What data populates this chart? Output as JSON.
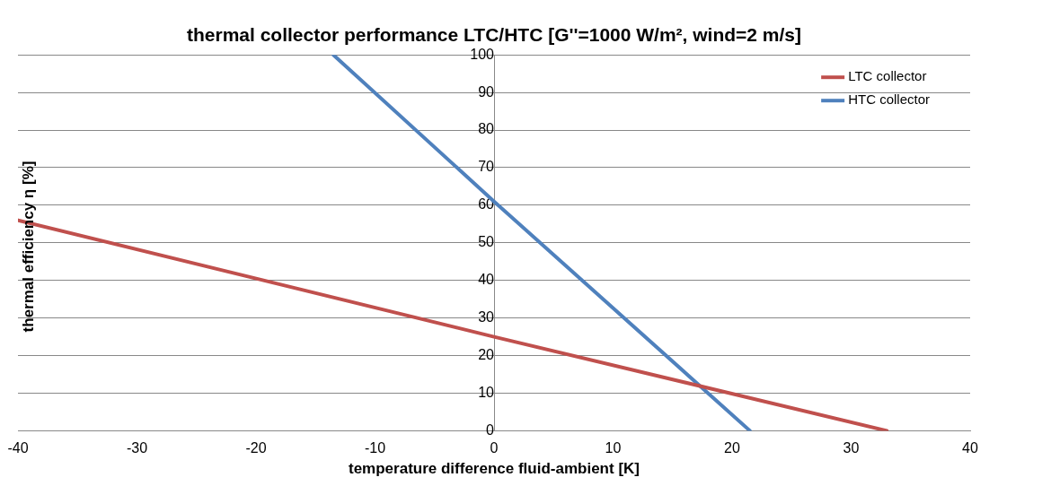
{
  "chart_data": {
    "type": "line",
    "title": "thermal collector performance LTC/HTC [G''=1000 W/m², wind=2 m/s]",
    "xlabel": "temperature difference fluid-ambient [K]",
    "ylabel": "thermal efficiency η [%]",
    "series": [
      {
        "name": "LTC collector",
        "color": "#c0504d",
        "x": [
          -40,
          0,
          33
        ],
        "values": [
          56,
          25,
          0
        ]
      },
      {
        "name": "HTC collector",
        "color": "#4f81bd",
        "x": [
          -13.5,
          0,
          21.5
        ],
        "values": [
          100,
          61,
          0
        ]
      }
    ],
    "xlim": [
      -40,
      40
    ],
    "xticks": [
      -40,
      -30,
      -20,
      -10,
      0,
      10,
      20,
      30,
      40
    ],
    "ylim": [
      0,
      100
    ],
    "yticks": [
      0,
      10,
      20,
      30,
      40,
      50,
      60,
      70,
      80,
      90,
      100
    ],
    "grid": "y",
    "legend": "top right",
    "marker": "none",
    "line_style": "solid"
  }
}
